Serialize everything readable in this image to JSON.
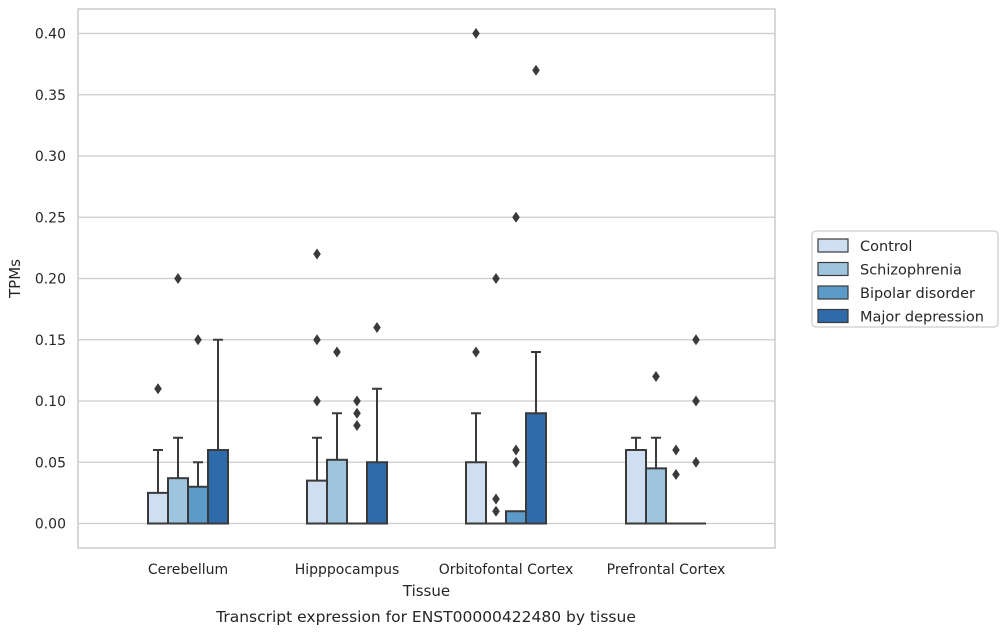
{
  "chart_data": {
    "type": "box",
    "title": "",
    "caption": "Transcript expression for ENST00000422480 by tissue",
    "xlabel": "Tissue",
    "ylabel": "TPMs",
    "ylim": [
      -0.02,
      0.42
    ],
    "yticks": [
      0.0,
      0.05,
      0.1,
      0.15,
      0.2,
      0.25,
      0.3,
      0.35,
      0.4
    ],
    "ytick_labels": [
      "0.00",
      "0.05",
      "0.10",
      "0.15",
      "0.20",
      "0.25",
      "0.30",
      "0.35",
      "0.40"
    ],
    "grid": true,
    "legend_position": "right",
    "categories": [
      "Cerebellum",
      "Hipppocampus",
      "Orbitofontal Cortex",
      "Prefrontal Cortex"
    ],
    "series": [
      {
        "name": "Control",
        "color": "#cfdef0",
        "boxes": [
          {
            "q1": 0.0,
            "median": 0.0,
            "q3": 0.025,
            "whisker_low": 0.0,
            "whisker_high": 0.06,
            "outliers": [
              0.11
            ]
          },
          {
            "q1": 0.0,
            "median": 0.0,
            "q3": 0.035,
            "whisker_low": 0.0,
            "whisker_high": 0.07,
            "outliers": [
              0.1,
              0.15,
              0.22
            ]
          },
          {
            "q1": 0.0,
            "median": 0.0,
            "q3": 0.05,
            "whisker_low": 0.0,
            "whisker_high": 0.09,
            "outliers": [
              0.14,
              0.4
            ]
          },
          {
            "q1": 0.0,
            "median": 0.06,
            "q3": 0.06,
            "whisker_low": 0.0,
            "whisker_high": 0.07,
            "outliers": []
          }
        ]
      },
      {
        "name": "Schizophrenia",
        "color": "#9fc5de",
        "boxes": [
          {
            "q1": 0.0,
            "median": 0.0,
            "q3": 0.037,
            "whisker_low": 0.0,
            "whisker_high": 0.07,
            "outliers": [
              0.2
            ]
          },
          {
            "q1": 0.0,
            "median": 0.0,
            "q3": 0.052,
            "whisker_low": 0.0,
            "whisker_high": 0.09,
            "outliers": [
              0.14
            ]
          },
          {
            "q1": 0.0,
            "median": 0.0,
            "q3": 0.0,
            "whisker_low": 0.0,
            "whisker_high": 0.0,
            "outliers": [
              0.01,
              0.02,
              0.2
            ]
          },
          {
            "q1": 0.0,
            "median": 0.0,
            "q3": 0.045,
            "whisker_low": 0.0,
            "whisker_high": 0.07,
            "outliers": [
              0.12
            ]
          }
        ]
      },
      {
        "name": "Bipolar disorder",
        "color": "#5c9bc9",
        "boxes": [
          {
            "q1": 0.0,
            "median": 0.0,
            "q3": 0.03,
            "whisker_low": 0.0,
            "whisker_high": 0.05,
            "outliers": [
              0.15
            ]
          },
          {
            "q1": 0.0,
            "median": 0.0,
            "q3": 0.0,
            "whisker_low": 0.0,
            "whisker_high": 0.0,
            "outliers": [
              0.08,
              0.09,
              0.1
            ]
          },
          {
            "q1": 0.0,
            "median": 0.0,
            "q3": 0.01,
            "whisker_low": 0.0,
            "whisker_high": 0.01,
            "outliers": [
              0.05,
              0.06,
              0.25
            ]
          },
          {
            "q1": 0.0,
            "median": 0.0,
            "q3": 0.0,
            "whisker_low": 0.0,
            "whisker_high": 0.0,
            "outliers": [
              0.04,
              0.06
            ]
          }
        ]
      },
      {
        "name": "Major depression",
        "color": "#2f6aaa",
        "boxes": [
          {
            "q1": 0.0,
            "median": 0.0,
            "q3": 0.06,
            "whisker_low": 0.0,
            "whisker_high": 0.15,
            "outliers": []
          },
          {
            "q1": 0.0,
            "median": 0.0,
            "q3": 0.05,
            "whisker_low": 0.0,
            "whisker_high": 0.11,
            "outliers": [
              0.16
            ]
          },
          {
            "q1": 0.0,
            "median": 0.0,
            "q3": 0.09,
            "whisker_low": 0.0,
            "whisker_high": 0.14,
            "outliers": [
              0.37
            ]
          },
          {
            "q1": 0.0,
            "median": 0.0,
            "q3": 0.0,
            "whisker_low": 0.0,
            "whisker_high": 0.0,
            "outliers": [
              0.05,
              0.1,
              0.15
            ]
          }
        ]
      }
    ]
  }
}
